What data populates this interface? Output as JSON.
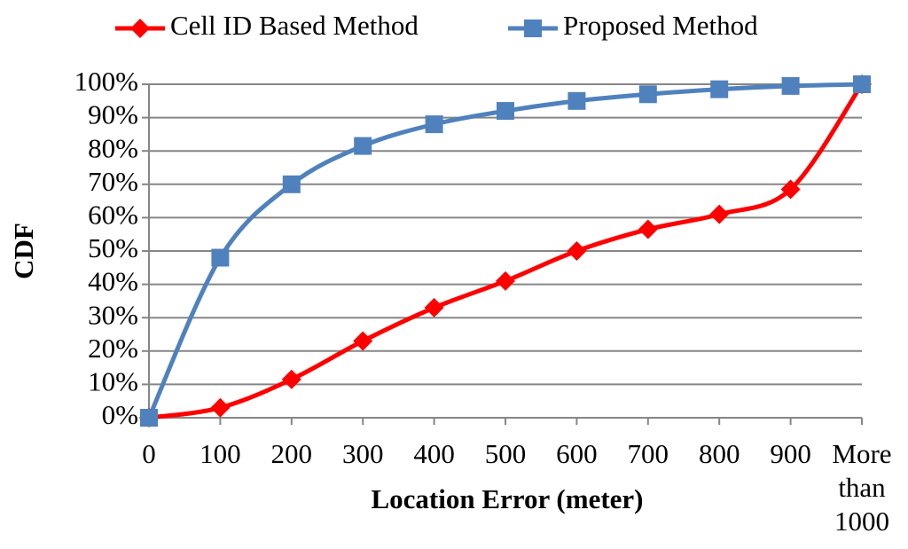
{
  "chart_data": {
    "type": "line",
    "x_label": "Location Error (meter)",
    "y_label": "CDF",
    "categories": [
      "0",
      "100",
      "200",
      "300",
      "400",
      "500",
      "600",
      "700",
      "800",
      "900",
      "More than 1000"
    ],
    "series": [
      {
        "name": "Cell ID Based Method",
        "color": "#ff0000",
        "marker": "diamond",
        "values": [
          0,
          3,
          11.5,
          23,
          33,
          41,
          50,
          56.5,
          61,
          68.5,
          100
        ]
      },
      {
        "name": "Proposed Method",
        "color": "#4f81bd",
        "marker": "square",
        "values": [
          0,
          48,
          70,
          81.5,
          88,
          92,
          95,
          97,
          98.5,
          99.5,
          100
        ]
      }
    ],
    "ylim": [
      0,
      100
    ],
    "yticks": [
      {
        "value": 0,
        "label": "0%"
      },
      {
        "value": 10,
        "label": "10%"
      },
      {
        "value": 20,
        "label": "20%"
      },
      {
        "value": 30,
        "label": "30%"
      },
      {
        "value": 40,
        "label": "40%"
      },
      {
        "value": 50,
        "label": "50%"
      },
      {
        "value": 60,
        "label": "60%"
      },
      {
        "value": 70,
        "label": "70%"
      },
      {
        "value": 80,
        "label": "80%"
      },
      {
        "value": 90,
        "label": "90%"
      },
      {
        "value": 100,
        "label": "100%"
      }
    ],
    "grid": true,
    "smooth": true,
    "legend": "top"
  }
}
